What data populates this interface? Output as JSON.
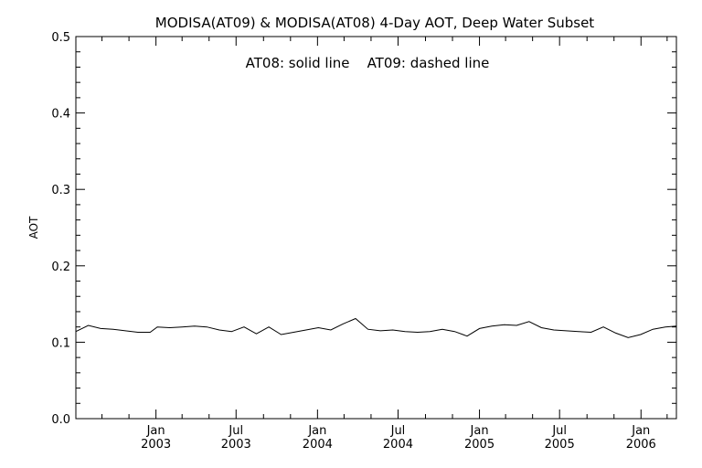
{
  "chart_data": {
    "type": "line",
    "title": "MODISA(AT09) & MODISA(AT08) 4-Day AOT, Deep Water Subset",
    "annotation": "AT08: solid line    AT09: dashed line",
    "ylabel": "AOT",
    "xlabel": "",
    "ylim": [
      0.0,
      0.5
    ],
    "yticks": [
      "0.0",
      "0.1",
      "0.2",
      "0.3",
      "0.4",
      "0.5"
    ],
    "xlim": [
      "2002-07-04",
      "2006-03-22"
    ],
    "xticks": [
      {
        "date": "2003-01-01",
        "line1": "Jan",
        "line2": "2003"
      },
      {
        "date": "2003-07-01",
        "line1": "Jul",
        "line2": "2003"
      },
      {
        "date": "2004-01-01",
        "line1": "Jan",
        "line2": "2004"
      },
      {
        "date": "2004-07-01",
        "line1": "Jul",
        "line2": "2004"
      },
      {
        "date": "2005-01-01",
        "line1": "Jan",
        "line2": "2005"
      },
      {
        "date": "2005-07-01",
        "line1": "Jul",
        "line2": "2005"
      },
      {
        "date": "2006-01-01",
        "line1": "Jan",
        "line2": "2006"
      }
    ],
    "series": [
      {
        "style": "solid",
        "color": "#000000",
        "points": [
          [
            "2002-07-04",
            0.114
          ],
          [
            "2002-08-01",
            0.122
          ],
          [
            "2002-08-29",
            0.118
          ],
          [
            "2002-09-26",
            0.117
          ],
          [
            "2002-10-24",
            0.115
          ],
          [
            "2002-11-21",
            0.113
          ],
          [
            "2002-12-19",
            0.113
          ],
          [
            "2003-01-04",
            0.12
          ],
          [
            "2003-02-01",
            0.119
          ],
          [
            "2003-03-01",
            0.12
          ],
          [
            "2003-03-29",
            0.121
          ],
          [
            "2003-04-26",
            0.12
          ],
          [
            "2003-05-24",
            0.116
          ],
          [
            "2003-06-21",
            0.114
          ],
          [
            "2003-07-19",
            0.12
          ],
          [
            "2003-08-16",
            0.111
          ],
          [
            "2003-09-13",
            0.12
          ],
          [
            "2003-10-11",
            0.11
          ],
          [
            "2003-11-08",
            0.113
          ],
          [
            "2003-12-06",
            0.116
          ],
          [
            "2004-01-03",
            0.119
          ],
          [
            "2004-01-31",
            0.116
          ],
          [
            "2004-02-28",
            0.124
          ],
          [
            "2004-03-27",
            0.131
          ],
          [
            "2004-04-24",
            0.117
          ],
          [
            "2004-05-22",
            0.115
          ],
          [
            "2004-06-19",
            0.116
          ],
          [
            "2004-07-17",
            0.114
          ],
          [
            "2004-08-14",
            0.113
          ],
          [
            "2004-09-11",
            0.114
          ],
          [
            "2004-10-09",
            0.117
          ],
          [
            "2004-11-06",
            0.114
          ],
          [
            "2004-12-04",
            0.108
          ],
          [
            "2005-01-01",
            0.118
          ],
          [
            "2005-01-29",
            0.121
          ],
          [
            "2005-02-26",
            0.123
          ],
          [
            "2005-03-26",
            0.122
          ],
          [
            "2005-04-23",
            0.127
          ],
          [
            "2005-05-21",
            0.119
          ],
          [
            "2005-06-18",
            0.116
          ],
          [
            "2005-07-16",
            0.115
          ],
          [
            "2005-08-13",
            0.114
          ],
          [
            "2005-09-10",
            0.113
          ],
          [
            "2005-10-08",
            0.12
          ],
          [
            "2005-11-05",
            0.112
          ],
          [
            "2005-12-03",
            0.106
          ],
          [
            "2005-12-31",
            0.11
          ],
          [
            "2006-01-28",
            0.117
          ],
          [
            "2006-02-25",
            0.12
          ],
          [
            "2006-03-22",
            0.121
          ]
        ]
      }
    ]
  }
}
